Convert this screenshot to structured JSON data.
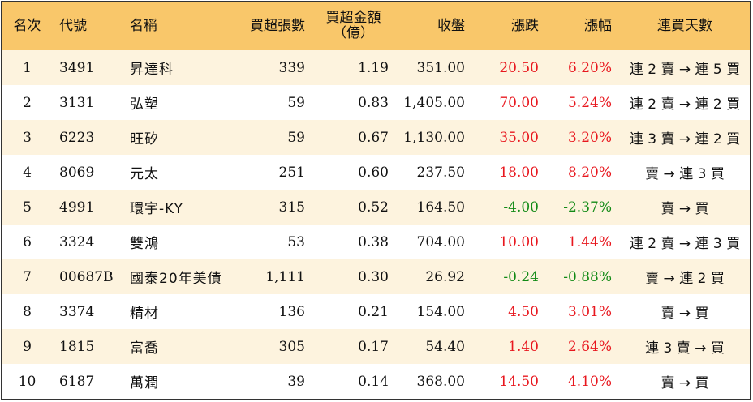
{
  "table": {
    "headers": [
      "名次",
      "代號",
      "名稱",
      "買超張數",
      "買超金額\n（億）",
      "收盤",
      "漲跌",
      "漲幅",
      "連買天數"
    ],
    "rows": [
      {
        "rank": "1",
        "code": "3491",
        "name": "昇達科",
        "shares": "339",
        "amount": "1.19",
        "close": "351.00",
        "change": "20.50",
        "pct": "6.20%",
        "dir": "up",
        "streak": "連 2 賣 → 連 5 買"
      },
      {
        "rank": "2",
        "code": "3131",
        "name": "弘塑",
        "shares": "59",
        "amount": "0.83",
        "close": "1,405.00",
        "change": "70.00",
        "pct": "5.24%",
        "dir": "up",
        "streak": "連 2 賣 → 連 2 買"
      },
      {
        "rank": "3",
        "code": "6223",
        "name": "旺矽",
        "shares": "59",
        "amount": "0.67",
        "close": "1,130.00",
        "change": "35.00",
        "pct": "3.20%",
        "dir": "up",
        "streak": "連 3 賣 → 連 2 買"
      },
      {
        "rank": "4",
        "code": "8069",
        "name": "元太",
        "shares": "251",
        "amount": "0.60",
        "close": "237.50",
        "change": "18.00",
        "pct": "8.20%",
        "dir": "up",
        "streak": "賣 → 連 3 買"
      },
      {
        "rank": "5",
        "code": "4991",
        "name": "環宇-KY",
        "shares": "315",
        "amount": "0.52",
        "close": "164.50",
        "change": "-4.00",
        "pct": "-2.37%",
        "dir": "down",
        "streak": "賣 → 買"
      },
      {
        "rank": "6",
        "code": "3324",
        "name": "雙鴻",
        "shares": "53",
        "amount": "0.38",
        "close": "704.00",
        "change": "10.00",
        "pct": "1.44%",
        "dir": "up",
        "streak": "連 2 賣 → 連 3 買"
      },
      {
        "rank": "7",
        "code": "00687B",
        "name": "國泰20年美債",
        "shares": "1,111",
        "amount": "0.30",
        "close": "26.92",
        "change": "-0.24",
        "pct": "-0.88%",
        "dir": "down",
        "streak": "賣 → 連 2 買"
      },
      {
        "rank": "8",
        "code": "3374",
        "name": "精材",
        "shares": "136",
        "amount": "0.21",
        "close": "154.00",
        "change": "4.50",
        "pct": "3.01%",
        "dir": "up",
        "streak": "賣 → 買"
      },
      {
        "rank": "9",
        "code": "1815",
        "name": "富喬",
        "shares": "305",
        "amount": "0.17",
        "close": "54.40",
        "change": "1.40",
        "pct": "2.64%",
        "dir": "up",
        "streak": "連 3 賣 → 買"
      },
      {
        "rank": "10",
        "code": "6187",
        "name": "萬潤",
        "shares": "39",
        "amount": "0.14",
        "close": "368.00",
        "change": "14.50",
        "pct": "4.10%",
        "dir": "up",
        "streak": "賣 → 買"
      }
    ]
  },
  "colors": {
    "header_bg": "#f9c76a",
    "stripe_bg": "#fdf3de",
    "up": "#e8171e",
    "down": "#118a15"
  }
}
